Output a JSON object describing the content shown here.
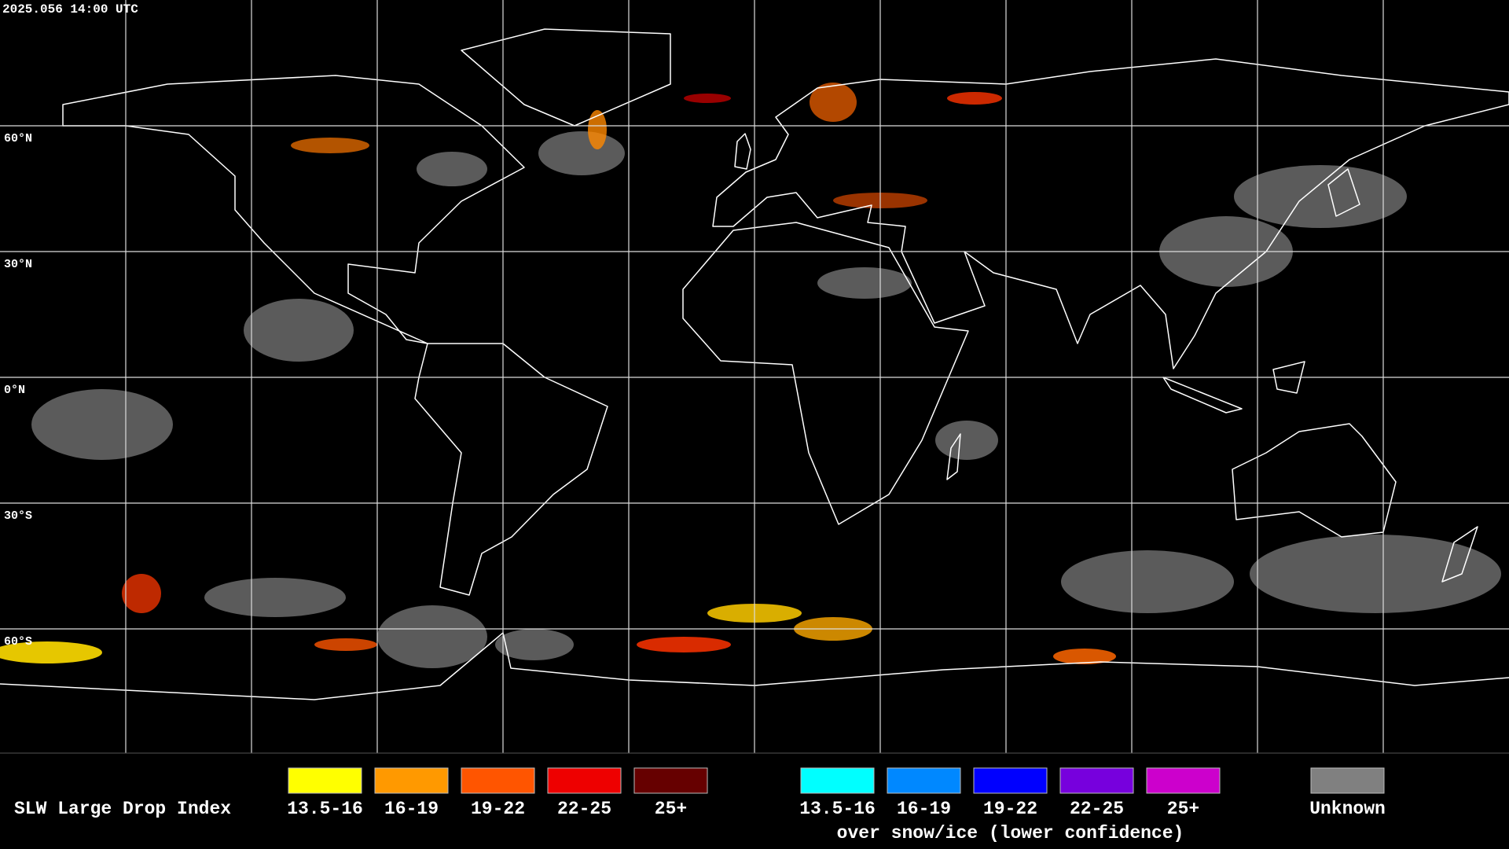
{
  "header": {
    "timestamp": "2025.056 14:00 UTC"
  },
  "map": {
    "lat_labels": [
      "60°N",
      "30°N",
      "0°N",
      "30°S",
      "60°S"
    ]
  },
  "legend": {
    "title": "SLW Large Drop Index",
    "groups": [
      {
        "entries": [
          {
            "label": "13.5-16",
            "color": "#ffff00"
          },
          {
            "label": "16-19",
            "color": "#ff9900"
          },
          {
            "label": "19-22",
            "color": "#ff5500"
          },
          {
            "label": "22-25",
            "color": "#ee0000"
          },
          {
            "label": "25+",
            "color": "#660000"
          }
        ]
      },
      {
        "entries": [
          {
            "label": "13.5-16",
            "color": "#00ffff"
          },
          {
            "label": "16-19",
            "color": "#0088ff"
          },
          {
            "label": "19-22",
            "color": "#0000ff"
          },
          {
            "label": "22-25",
            "color": "#7700dd"
          },
          {
            "label": "25+",
            "color": "#cc00cc"
          }
        ],
        "caption": "over snow/ice (lower confidence)"
      },
      {
        "entries": [
          {
            "label": "Unknown",
            "color": "#808080"
          }
        ]
      }
    ]
  }
}
